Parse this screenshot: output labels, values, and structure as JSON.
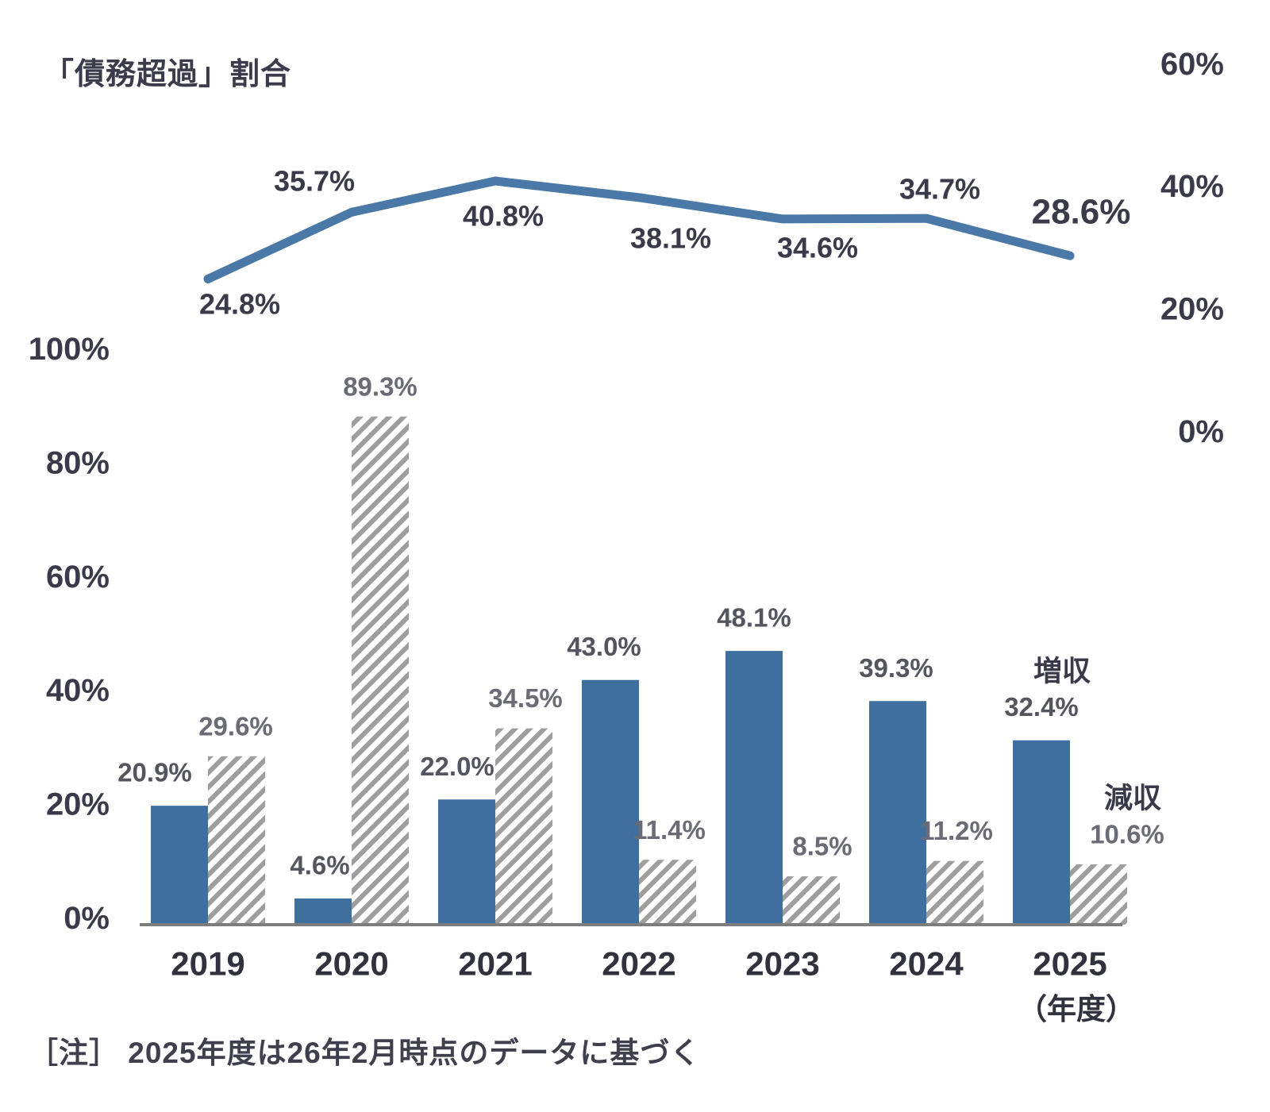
{
  "chart_data": {
    "type": "combo-line-bar",
    "title": "「債務超過」割合",
    "note": "［注］ 2025年度は26年2月時点のデータに基づく",
    "x_categories": [
      "2019",
      "2020",
      "2021",
      "2022",
      "2023",
      "2024",
      "2025"
    ],
    "x_axis_unit_label": "（年度）",
    "line_series": {
      "name": "「債務超過」割合",
      "axis": "right",
      "color": "#4a79a8",
      "values": [
        24.8,
        35.7,
        40.8,
        38.1,
        34.6,
        34.7,
        28.6
      ]
    },
    "bar_series": [
      {
        "name": "増収",
        "style": "solid",
        "color": "#3f6f9f",
        "values": [
          20.9,
          4.6,
          22.0,
          43.0,
          48.1,
          39.3,
          32.4
        ]
      },
      {
        "name": "減収",
        "style": "hatched",
        "hatch_color": "#9e9e9e",
        "values": [
          29.6,
          89.3,
          34.5,
          11.4,
          8.5,
          11.2,
          10.6
        ]
      }
    ],
    "left_axis": {
      "min": 0,
      "max": 100,
      "ticks": [
        {
          "label": "100%",
          "value": 100
        },
        {
          "label": "80%",
          "value": 80
        },
        {
          "label": "60%",
          "value": 60
        },
        {
          "label": "40%",
          "value": 40
        },
        {
          "label": "20%",
          "value": 20
        },
        {
          "label": "0%",
          "value": 0
        }
      ]
    },
    "right_axis": {
      "min": 0,
      "max": 60,
      "ticks": [
        {
          "label": "60%",
          "value": 60
        },
        {
          "label": "40%",
          "value": 40
        },
        {
          "label": "20%",
          "value": 20
        },
        {
          "label": "0%",
          "value": 0
        }
      ]
    },
    "value_label_format": "one_decimal_percent",
    "grid": false,
    "legend_position": "inline-right"
  }
}
